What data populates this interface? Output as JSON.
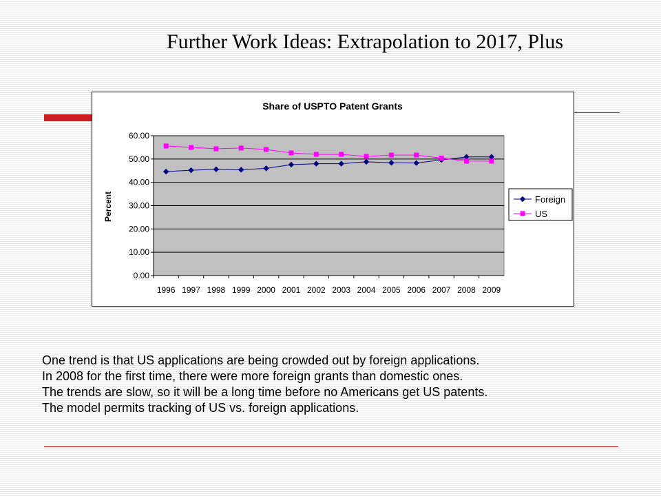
{
  "slide": {
    "title": "Further Work Ideas: Extrapolation to 2017, Plus",
    "body_lines": [
      "One trend is that US applications are being crowded out by foreign applications.",
      "In 2008 for the first time, there were more foreign grants than domestic ones.",
      "The trends are slow, so it will be a long time before no Americans get US patents.",
      "The model permits tracking of US vs. foreign applications."
    ],
    "colors": {
      "accent_red": "#cc1f24",
      "background_stripe": "#e6e6e6"
    }
  },
  "chart_data": {
    "type": "line",
    "title": "Share of USPTO Patent Grants",
    "xlabel": "",
    "ylabel": "Percent",
    "categories": [
      "1996",
      "1997",
      "1998",
      "1999",
      "2000",
      "2001",
      "2002",
      "2003",
      "2004",
      "2005",
      "2006",
      "2007",
      "2008",
      "2009"
    ],
    "y_ticks": [
      "0.00",
      "10.00",
      "20.00",
      "30.00",
      "40.00",
      "50.00",
      "60.00"
    ],
    "ylim": [
      0,
      60
    ],
    "grid": true,
    "legend_position": "right",
    "plot_background": "#c0c0c0",
    "series": [
      {
        "name": "Foreign",
        "color": "#000080",
        "marker": "diamond",
        "values": [
          44.6,
          45.2,
          45.6,
          45.4,
          46.0,
          47.6,
          48.0,
          48.0,
          48.8,
          48.4,
          48.3,
          49.6,
          50.9,
          50.9
        ]
      },
      {
        "name": "US",
        "color": "#ff00ff",
        "marker": "square",
        "values": [
          55.6,
          55.0,
          54.4,
          54.7,
          54.1,
          52.6,
          52.0,
          52.0,
          51.1,
          51.7,
          51.7,
          50.4,
          49.1,
          49.1
        ]
      }
    ]
  }
}
